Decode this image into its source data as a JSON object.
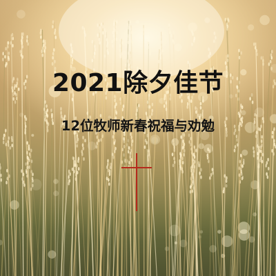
{
  "poster": {
    "title": "2021除夕佳节",
    "subtitle": "12位牧师新春祝福与劝勉"
  },
  "colors": {
    "text": "#111111",
    "cross": "#b52a1c",
    "light": "#fff6dc",
    "grass": "#6a6e3e"
  },
  "icons": {
    "cross": "cross-icon"
  }
}
